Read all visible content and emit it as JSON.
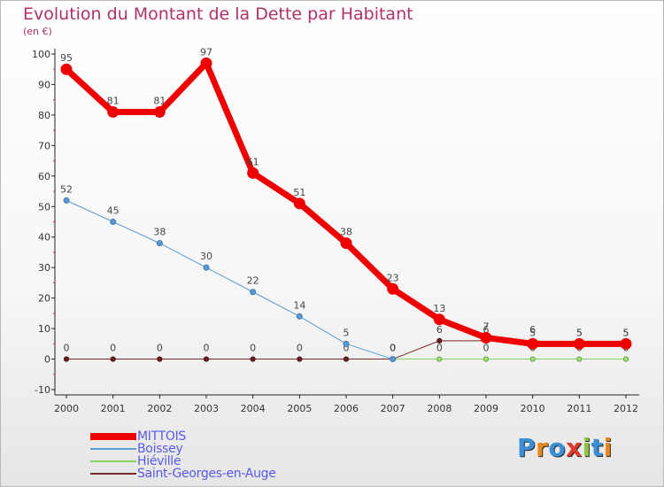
{
  "title": "Evolution du Montant de la Dette par Habitant",
  "subtitle": "(en €)",
  "colors": {
    "title": "#b0306a",
    "axis": "#222222",
    "legend_text": "#5a5ae6"
  },
  "logo": {
    "letters": [
      {
        "ch": "P",
        "color": "#3a8fd6"
      },
      {
        "ch": "r",
        "color": "#e8891e"
      },
      {
        "ch": "o",
        "color": "#3a8fd6"
      },
      {
        "ch": "x",
        "color": "#e03a28"
      },
      {
        "ch": "i",
        "color": "#8cc63e"
      },
      {
        "ch": "t",
        "color": "#3a8fd6"
      },
      {
        "ch": "i",
        "color": "#e8891e"
      }
    ]
  },
  "chart_data": {
    "type": "line",
    "title": "Evolution du Montant de la Dette par Habitant",
    "subtitle": "(en €)",
    "x": [
      "2000",
      "2001",
      "2002",
      "2003",
      "2004",
      "2005",
      "2006",
      "2007",
      "2008",
      "2009",
      "2010",
      "2011",
      "2012"
    ],
    "yticks": [
      -10,
      0,
      10,
      20,
      30,
      40,
      50,
      60,
      70,
      80,
      90,
      100
    ],
    "ylim": [
      -10,
      100
    ],
    "grid": false,
    "legend_position": "bottom-left",
    "series": [
      {
        "name": "Saint-Georges-en-Auge",
        "color": "#7a2a2a",
        "width": 1,
        "marker_fill": "#6a2020",
        "marker_stroke": "#4a1010",
        "marker_r": 2.6,
        "values": [
          0,
          0,
          0,
          0,
          0,
          0,
          0,
          0,
          6,
          6,
          6,
          5,
          5
        ],
        "labels": [
          "0",
          "0",
          "0",
          "0",
          "0",
          "0",
          "0",
          "0",
          "6",
          "6",
          "6",
          "5",
          "5"
        ]
      },
      {
        "name": "Hiéville",
        "color": "#88d060",
        "width": 1,
        "marker_fill": "#a6e07c",
        "marker_stroke": "#5aa83a",
        "marker_r": 2.6,
        "values": [
          null,
          null,
          null,
          null,
          null,
          null,
          null,
          0,
          0,
          0,
          0,
          0,
          0
        ],
        "labels": [
          "",
          "",
          "",
          "",
          "",
          "",
          "",
          "0",
          "0",
          "0",
          "0",
          "0",
          "0"
        ]
      },
      {
        "name": "Boissey",
        "color": "#5b9bd0",
        "width": 1,
        "marker_fill": "#5b9bd0",
        "marker_stroke": "#3a78b0",
        "marker_r": 3,
        "values": [
          52,
          45,
          38,
          30,
          22,
          14,
          5,
          0,
          null,
          null,
          null,
          null,
          null
        ],
        "labels": [
          "52",
          "45",
          "38",
          "30",
          "22",
          "14",
          "5",
          "0",
          "",
          "",
          "",
          "",
          ""
        ]
      },
      {
        "name": "MITTOIS",
        "color": "#ee0000",
        "width": 7,
        "marker_fill": "#ee0000",
        "marker_stroke": "#ee0000",
        "marker_r": 6,
        "values": [
          95,
          81,
          81,
          97,
          61,
          51,
          38,
          23,
          13,
          7,
          5,
          5,
          5
        ],
        "labels": [
          "95",
          "81",
          "81",
          "97",
          "61",
          "51",
          "38",
          "23",
          "13",
          "7",
          "5",
          "5",
          "5"
        ]
      }
    ],
    "legend_order": [
      "MITTOIS",
      "Boissey",
      "Hiéville",
      "Saint-Georges-en-Auge"
    ],
    "legend_swatch_heights": {
      "MITTOIS": 8,
      "Boissey": 1.5,
      "Hiéville": 1.5,
      "Saint-Georges-en-Auge": 1.5
    }
  }
}
